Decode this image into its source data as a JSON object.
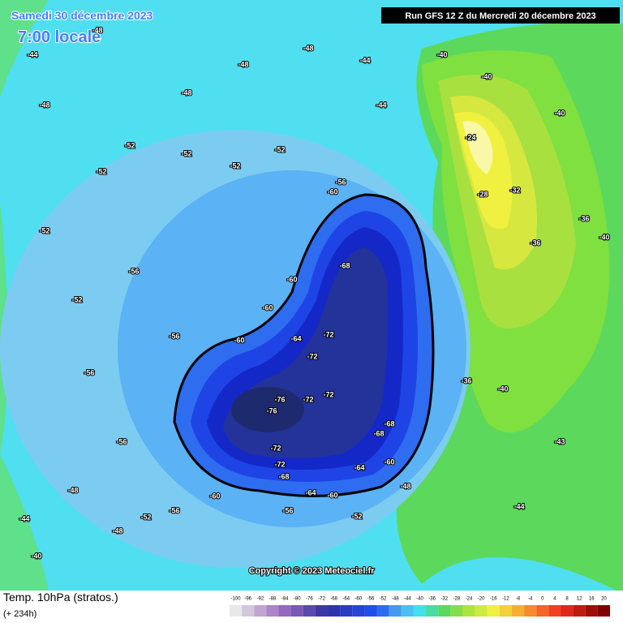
{
  "header": {
    "date": "Samedi 30 décembre 2023",
    "time": "7:00 locale",
    "run": "Run GFS 12 Z du Mercredi 20 décembre 2023"
  },
  "footer": {
    "title": "Temp. 10hPa (stratos.)",
    "lead": "(+ 234h)",
    "copyright": "Copyright © 2023 Meteociel.fr"
  },
  "legend": {
    "values": [
      -100,
      -96,
      -92,
      -88,
      -84,
      -80,
      -76,
      -72,
      -68,
      -64,
      -60,
      -56,
      -52,
      -48,
      -44,
      -40,
      -36,
      -32,
      -28,
      -24,
      -20,
      -16,
      -12,
      -8,
      -4,
      0,
      4,
      8,
      12,
      16,
      20
    ]
  },
  "contour_labels": [
    -44,
    -48,
    -48,
    -48,
    -48,
    -44,
    -44,
    -48,
    -52,
    -52,
    -52,
    -52,
    -52,
    -52,
    -52,
    -56,
    -56,
    -60,
    -60,
    -60,
    -60,
    -56,
    -60,
    -68,
    -72,
    -72,
    -64,
    -76,
    -76,
    -72,
    -72,
    -72,
    -72,
    -68,
    -68,
    -68,
    -64,
    -60,
    -64,
    -60,
    -56,
    -56,
    -52,
    -48,
    -44,
    -40,
    -40,
    -40,
    -40,
    -24,
    -28,
    -32,
    -36,
    -36,
    -40,
    -36,
    -40,
    -43,
    -44,
    -48,
    -52,
    -56,
    -56,
    -48
  ]
}
